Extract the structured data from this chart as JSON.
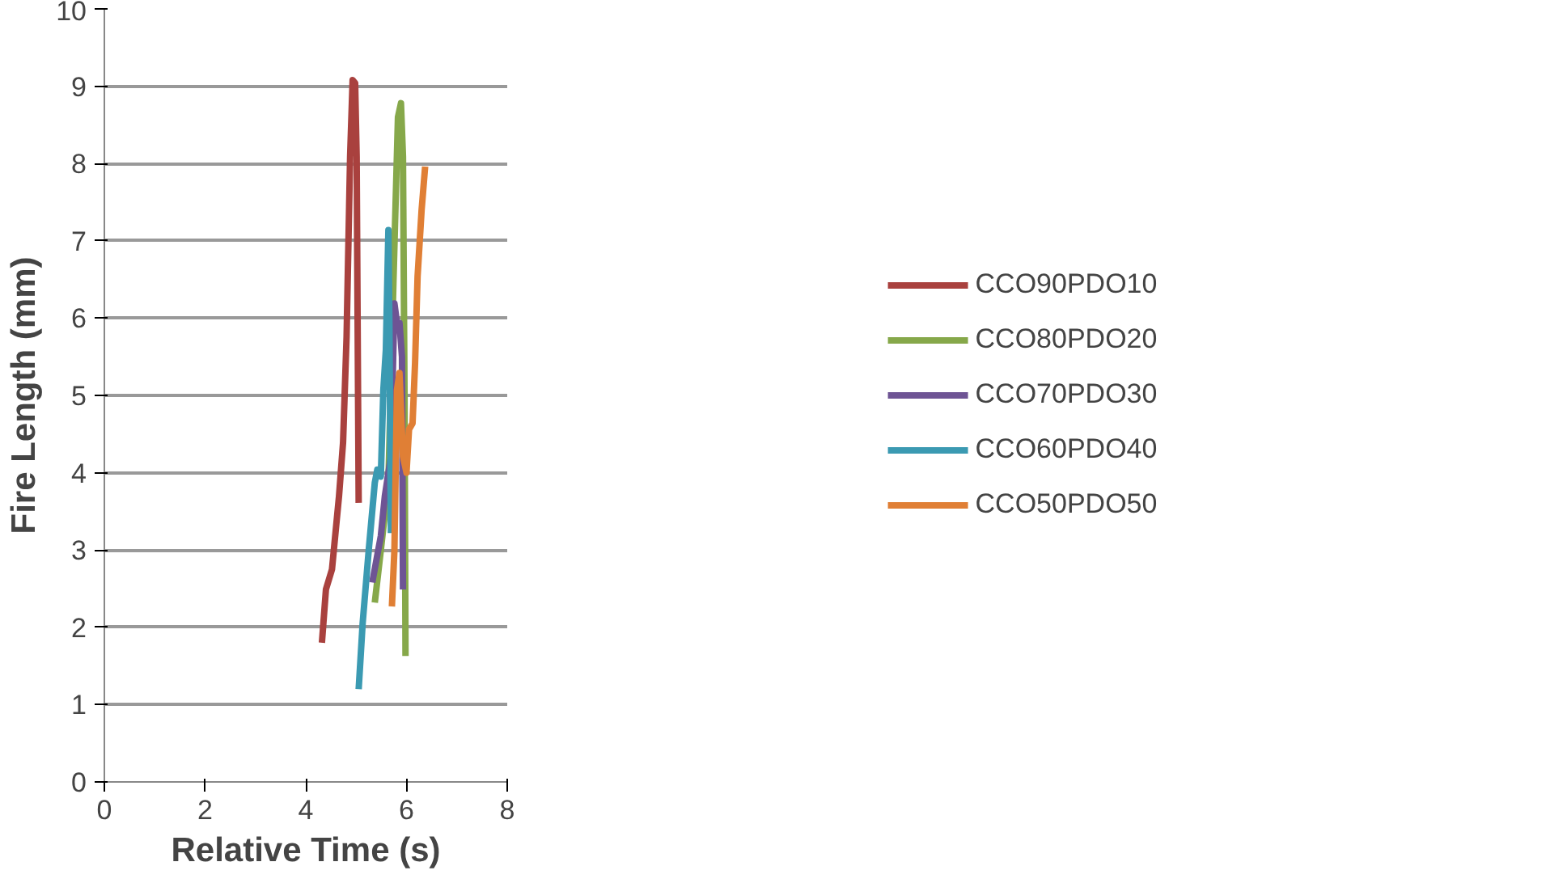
{
  "chart_data": {
    "type": "line",
    "xlabel": "Relative Time (s)",
    "ylabel": "Fire Length (mm)",
    "xlim": [
      0,
      8
    ],
    "ylim": [
      0,
      10
    ],
    "xticks": [
      0,
      2,
      4,
      6,
      8
    ],
    "yticks": [
      0,
      1,
      2,
      3,
      4,
      5,
      6,
      7,
      8,
      9,
      10
    ],
    "grid": "y",
    "legend": "right",
    "marker": "none",
    "line_style": "solid",
    "series": [
      {
        "name": "CCO90PDO10",
        "color": "#a9413e",
        "x": [
          4.32,
          4.4,
          4.52,
          4.66,
          4.74,
          4.81,
          4.88,
          4.93,
          4.98,
          5.01,
          5.05
        ],
        "values": [
          1.8,
          2.49,
          2.75,
          3.7,
          4.39,
          5.76,
          8.09,
          9.08,
          9.04,
          8.09,
          3.61
        ]
      },
      {
        "name": "CCO80PDO20",
        "color": "#86a84a",
        "x": [
          5.37,
          5.49,
          5.64,
          5.74,
          5.83,
          5.89,
          5.93,
          5.96,
          5.98
        ],
        "values": [
          2.32,
          3.0,
          3.87,
          6.45,
          8.6,
          8.78,
          8.09,
          5.07,
          1.63
        ]
      },
      {
        "name": "CCO70PDO30",
        "color": "#6e5494",
        "x": [
          5.32,
          5.49,
          5.57,
          5.69,
          5.76,
          5.81,
          5.86,
          5.91,
          5.93
        ],
        "values": [
          2.58,
          3.18,
          3.7,
          4.21,
          6.19,
          5.94,
          5.94,
          5.5,
          2.49
        ]
      },
      {
        "name": "CCO60PDO40",
        "color": "#3b9ab2",
        "x": [
          5.05,
          5.13,
          5.25,
          5.37,
          5.42,
          5.49,
          5.54,
          5.59,
          5.64,
          5.66,
          5.69
        ],
        "values": [
          1.2,
          2.06,
          3.0,
          3.87,
          4.04,
          3.95,
          5.07,
          5.59,
          7.14,
          5.94,
          3.22
        ]
      },
      {
        "name": "CCO50PDO50",
        "color": "#e07f35",
        "x": [
          5.71,
          5.76,
          5.81,
          5.86,
          5.93,
          6.0,
          6.05,
          6.12,
          6.17,
          6.22,
          6.3,
          6.37
        ],
        "values": [
          2.27,
          3.0,
          5.07,
          5.29,
          4.21,
          4.0,
          4.56,
          4.64,
          5.42,
          6.54,
          7.4,
          7.96
        ]
      }
    ]
  }
}
